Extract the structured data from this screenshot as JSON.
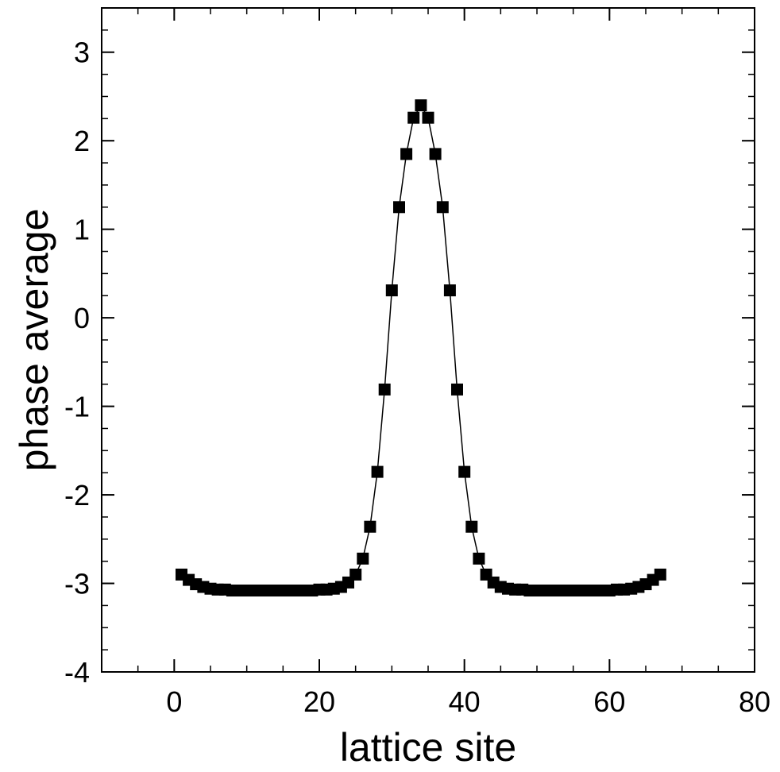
{
  "chart_data": {
    "type": "scatter",
    "title": "",
    "xlabel": "lattice site",
    "ylabel": "phase average",
    "xlim": [
      -10,
      80
    ],
    "ylim": [
      -4,
      3.5
    ],
    "xticks": [
      0,
      20,
      40,
      60,
      80
    ],
    "yticks": [
      -4,
      -3,
      -2,
      -1,
      0,
      1,
      2,
      3
    ],
    "xtick_labels": [
      "0",
      "20",
      "40",
      "60",
      "80"
    ],
    "ytick_labels": [
      "-4",
      "-3",
      "-2",
      "-1",
      "0",
      "1",
      "2",
      "3"
    ],
    "grid": false,
    "legend": false,
    "marker": "square",
    "connected": true,
    "colors": {
      "marker": "#000000",
      "line": "#000000",
      "axes": "#000000"
    },
    "series": [
      {
        "x": [
          1,
          2,
          3,
          4,
          5,
          6,
          7,
          8,
          9,
          10,
          11,
          12,
          13,
          14,
          15,
          16,
          17,
          18,
          19,
          20,
          21,
          22,
          23,
          24,
          25,
          26,
          27,
          28,
          29,
          30,
          31,
          32,
          33,
          34,
          35,
          36,
          37,
          38,
          39,
          40,
          41,
          42,
          43,
          44,
          45,
          46,
          47,
          48,
          49,
          50,
          51,
          52,
          53,
          54,
          55,
          56,
          57,
          58,
          59,
          60,
          61,
          62,
          63,
          64,
          65,
          66,
          67
        ],
        "values": [
          -2.9,
          -2.96,
          -3.01,
          -3.04,
          -3.06,
          -3.07,
          -3.07,
          -3.08,
          -3.08,
          -3.08,
          -3.08,
          -3.08,
          -3.08,
          -3.08,
          -3.08,
          -3.08,
          -3.08,
          -3.08,
          -3.08,
          -3.07,
          -3.07,
          -3.06,
          -3.04,
          -2.99,
          -2.9,
          -2.72,
          -2.36,
          -1.74,
          -0.81,
          0.31,
          1.25,
          1.85,
          2.26,
          2.4,
          2.26,
          1.85,
          1.25,
          0.31,
          -0.81,
          -1.74,
          -2.36,
          -2.72,
          -2.9,
          -2.99,
          -3.04,
          -3.06,
          -3.07,
          -3.07,
          -3.08,
          -3.08,
          -3.08,
          -3.08,
          -3.08,
          -3.08,
          -3.08,
          -3.08,
          -3.08,
          -3.08,
          -3.08,
          -3.08,
          -3.07,
          -3.07,
          -3.06,
          -3.04,
          -3.01,
          -2.96,
          -2.9
        ]
      }
    ]
  }
}
